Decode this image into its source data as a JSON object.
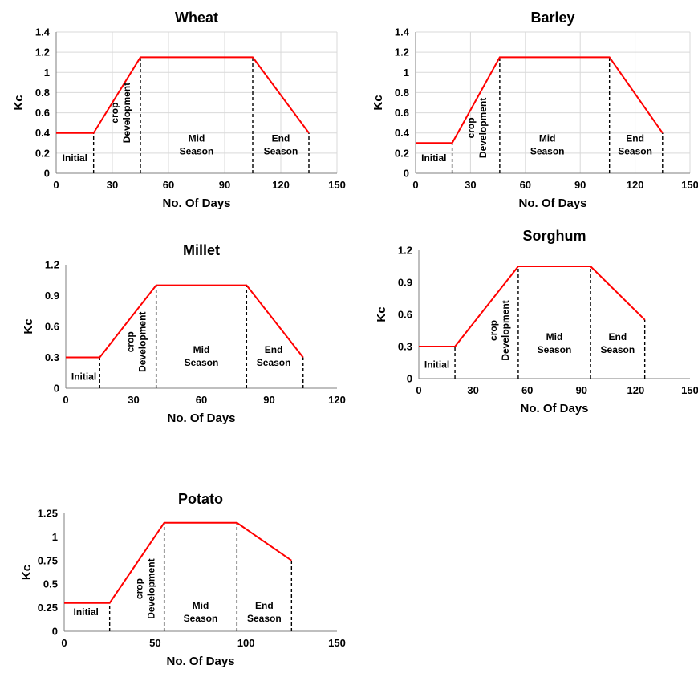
{
  "chart_data": [
    {
      "type": "line",
      "title": "Wheat",
      "xlabel": "No. Of Days",
      "ylabel": "Kc",
      "xlim": [
        0,
        150
      ],
      "ylim": [
        0,
        1.4
      ],
      "x_ticks": [
        0,
        30,
        60,
        90,
        120,
        150
      ],
      "y_ticks": [
        0,
        0.2,
        0.4,
        0.6,
        0.8,
        1,
        1.2,
        1.4
      ],
      "grid": true,
      "series": [
        {
          "x": [
            0,
            20,
            45,
            105,
            135
          ],
          "y": [
            0.4,
            0.4,
            1.15,
            1.15,
            0.4
          ]
        }
      ],
      "stage_boundaries": [
        20,
        45,
        105,
        135
      ],
      "stages": [
        {
          "label": [
            "Initial"
          ],
          "x": 10,
          "y": 0.12,
          "rotate": false
        },
        {
          "label": [
            "crop",
            "Development"
          ],
          "x": 33,
          "y": 0.6,
          "rotate": true
        },
        {
          "label": [
            "Mid",
            "Season"
          ],
          "x": 75,
          "y": 0.25,
          "rotate": false
        },
        {
          "label": [
            "End",
            "Season"
          ],
          "x": 120,
          "y": 0.25,
          "rotate": false
        }
      ]
    },
    {
      "type": "line",
      "title": "Barley",
      "xlabel": "No. Of Days",
      "ylabel": "Kc",
      "xlim": [
        0,
        150
      ],
      "ylim": [
        0,
        1.4
      ],
      "x_ticks": [
        0,
        30,
        60,
        90,
        120,
        150
      ],
      "y_ticks": [
        0,
        0.2,
        0.4,
        0.6,
        0.8,
        1,
        1.2,
        1.4
      ],
      "grid": true,
      "series": [
        {
          "x": [
            0,
            20,
            46,
            106,
            135
          ],
          "y": [
            0.3,
            0.3,
            1.15,
            1.15,
            0.4
          ]
        }
      ],
      "stage_boundaries": [
        20,
        46,
        106,
        135
      ],
      "stages": [
        {
          "label": [
            "Initial"
          ],
          "x": 10,
          "y": 0.12,
          "rotate": false
        },
        {
          "label": [
            "crop",
            "Development"
          ],
          "x": 32,
          "y": 0.45,
          "rotate": true
        },
        {
          "label": [
            "Mid",
            "Season"
          ],
          "x": 72,
          "y": 0.25,
          "rotate": false
        },
        {
          "label": [
            "End",
            "Season"
          ],
          "x": 120,
          "y": 0.25,
          "rotate": false
        }
      ]
    },
    {
      "type": "line",
      "title": "Millet",
      "xlabel": "No. Of Days",
      "ylabel": "Kc",
      "xlim": [
        0,
        120
      ],
      "ylim": [
        0,
        1.2
      ],
      "x_ticks": [
        0,
        30,
        60,
        90,
        120
      ],
      "y_ticks": [
        0,
        0.3,
        0.6,
        0.9,
        1.2
      ],
      "grid": false,
      "series": [
        {
          "x": [
            0,
            15,
            40,
            80,
            105
          ],
          "y": [
            0.3,
            0.3,
            1.0,
            1.0,
            0.3
          ]
        }
      ],
      "stage_boundaries": [
        15,
        40,
        80,
        105
      ],
      "stages": [
        {
          "label": [
            "Initial"
          ],
          "x": 8,
          "y": 0.08,
          "rotate": false
        },
        {
          "label": [
            "crop",
            "Development"
          ],
          "x": 30,
          "y": 0.45,
          "rotate": true
        },
        {
          "label": [
            "Mid",
            "Season"
          ],
          "x": 60,
          "y": 0.28,
          "rotate": false
        },
        {
          "label": [
            "End",
            "Season"
          ],
          "x": 92,
          "y": 0.28,
          "rotate": false
        }
      ]
    },
    {
      "type": "line",
      "title": "Sorghum",
      "xlabel": "No. Of Days",
      "ylabel": "Kc",
      "xlim": [
        0,
        150
      ],
      "ylim": [
        0,
        1.2
      ],
      "x_ticks": [
        0,
        30,
        60,
        90,
        120,
        150
      ],
      "y_ticks": [
        0,
        0.3,
        0.6,
        0.9,
        1.2
      ],
      "grid": false,
      "series": [
        {
          "x": [
            0,
            20,
            55,
            95,
            125
          ],
          "y": [
            0.3,
            0.3,
            1.05,
            1.05,
            0.55
          ]
        }
      ],
      "stage_boundaries": [
        20,
        55,
        95,
        125
      ],
      "stages": [
        {
          "label": [
            "Initial"
          ],
          "x": 10,
          "y": 0.1,
          "rotate": false
        },
        {
          "label": [
            "crop",
            "Development"
          ],
          "x": 43,
          "y": 0.45,
          "rotate": true
        },
        {
          "label": [
            "Mid",
            "Season"
          ],
          "x": 75,
          "y": 0.3,
          "rotate": false
        },
        {
          "label": [
            "End",
            "Season"
          ],
          "x": 110,
          "y": 0.3,
          "rotate": false
        }
      ]
    },
    {
      "type": "line",
      "title": "Potato",
      "xlabel": "No. Of Days",
      "ylabel": "Kc",
      "xlim": [
        0,
        150
      ],
      "ylim": [
        0,
        1.25
      ],
      "x_ticks": [
        0,
        50,
        100,
        150
      ],
      "y_ticks": [
        0,
        0.25,
        0.5,
        0.75,
        1,
        1.25
      ],
      "grid": false,
      "series": [
        {
          "x": [
            0,
            25,
            55,
            95,
            125
          ],
          "y": [
            0.3,
            0.3,
            1.15,
            1.15,
            0.75
          ]
        }
      ],
      "stage_boundaries": [
        25,
        55,
        95,
        125
      ],
      "stages": [
        {
          "label": [
            "Initial"
          ],
          "x": 12,
          "y": 0.17,
          "rotate": false
        },
        {
          "label": [
            "crop",
            "Development"
          ],
          "x": 43,
          "y": 0.45,
          "rotate": true
        },
        {
          "label": [
            "Mid",
            "Season"
          ],
          "x": 75,
          "y": 0.17,
          "rotate": false
        },
        {
          "label": [
            "End",
            "Season"
          ],
          "x": 110,
          "y": 0.17,
          "rotate": false
        }
      ]
    }
  ]
}
